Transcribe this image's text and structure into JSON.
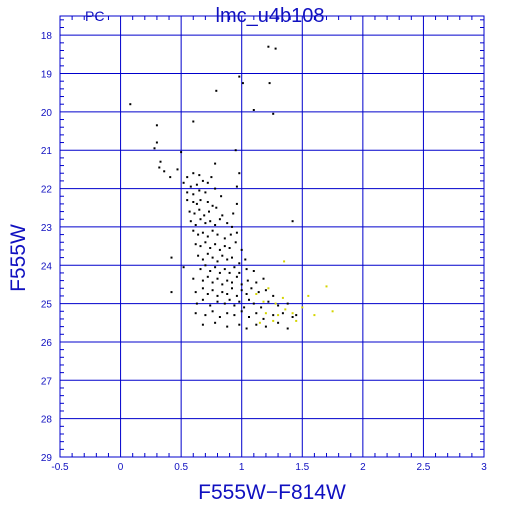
{
  "corner_label": "PC",
  "chart_data": {
    "type": "scatter",
    "title": "lmc_u4b108",
    "xlabel": "F555W−F814W",
    "ylabel": "F555W",
    "xlim": [
      -0.5,
      3
    ],
    "ylim": [
      29,
      17.5
    ],
    "y_inverted": true,
    "grid": true,
    "x_ticks": [
      "-0.5",
      "0",
      "0.5",
      "1",
      "1.5",
      "2",
      "2.5",
      "3"
    ],
    "y_ticks": [
      "18",
      "19",
      "20",
      "21",
      "22",
      "23",
      "24",
      "25",
      "26",
      "27",
      "28",
      "29"
    ],
    "colors": {
      "axes": "#0000cc",
      "grid": "#0000cc",
      "text": "#1010c0",
      "main": "#000000",
      "secondary": "#d4d400"
    },
    "series": [
      {
        "color": "#000000",
        "points": [
          [
            1.22,
            18.3
          ],
          [
            1.28,
            18.35
          ],
          [
            0.98,
            19.08
          ],
          [
            1.01,
            19.25
          ],
          [
            1.23,
            19.25
          ],
          [
            0.79,
            19.45
          ],
          [
            0.08,
            19.8
          ],
          [
            1.1,
            19.95
          ],
          [
            1.26,
            20.05
          ],
          [
            0.6,
            20.25
          ],
          [
            0.3,
            20.35
          ],
          [
            0.3,
            20.8
          ],
          [
            0.28,
            20.95
          ],
          [
            0.5,
            21.05
          ],
          [
            0.95,
            21.0
          ],
          [
            0.33,
            21.3
          ],
          [
            0.32,
            21.45
          ],
          [
            0.36,
            21.55
          ],
          [
            0.47,
            21.5
          ],
          [
            0.78,
            21.35
          ],
          [
            0.41,
            21.7
          ],
          [
            0.55,
            21.7
          ],
          [
            0.6,
            21.6
          ],
          [
            0.65,
            21.65
          ],
          [
            0.75,
            21.7
          ],
          [
            0.98,
            21.6
          ],
          [
            0.52,
            21.85
          ],
          [
            0.58,
            21.95
          ],
          [
            0.63,
            21.9
          ],
          [
            0.68,
            21.8
          ],
          [
            0.72,
            21.85
          ],
          [
            0.96,
            21.95
          ],
          [
            0.55,
            22.1
          ],
          [
            0.6,
            22.15
          ],
          [
            0.65,
            22.05
          ],
          [
            0.7,
            22.1
          ],
          [
            0.78,
            22.0
          ],
          [
            0.83,
            22.2
          ],
          [
            0.55,
            22.3
          ],
          [
            0.6,
            22.35
          ],
          [
            0.63,
            22.4
          ],
          [
            0.66,
            22.3
          ],
          [
            0.72,
            22.35
          ],
          [
            0.76,
            22.45
          ],
          [
            0.96,
            22.4
          ],
          [
            0.57,
            22.6
          ],
          [
            0.61,
            22.65
          ],
          [
            0.65,
            22.55
          ],
          [
            0.69,
            22.7
          ],
          [
            0.73,
            22.6
          ],
          [
            0.79,
            22.5
          ],
          [
            0.84,
            22.7
          ],
          [
            0.93,
            22.65
          ],
          [
            1.42,
            22.85
          ],
          [
            0.58,
            22.85
          ],
          [
            0.62,
            22.95
          ],
          [
            0.66,
            22.8
          ],
          [
            0.7,
            22.9
          ],
          [
            0.74,
            22.85
          ],
          [
            0.78,
            22.95
          ],
          [
            0.82,
            22.8
          ],
          [
            0.88,
            22.9
          ],
          [
            0.92,
            23.0
          ],
          [
            0.6,
            23.1
          ],
          [
            0.64,
            23.2
          ],
          [
            0.68,
            23.15
          ],
          [
            0.72,
            23.25
          ],
          [
            0.76,
            23.1
          ],
          [
            0.8,
            23.2
          ],
          [
            0.86,
            23.3
          ],
          [
            0.91,
            23.2
          ],
          [
            0.96,
            23.15
          ],
          [
            0.62,
            23.45
          ],
          [
            0.66,
            23.5
          ],
          [
            0.7,
            23.4
          ],
          [
            0.74,
            23.55
          ],
          [
            0.78,
            23.45
          ],
          [
            0.82,
            23.6
          ],
          [
            0.86,
            23.5
          ],
          [
            0.9,
            23.55
          ],
          [
            0.95,
            23.4
          ],
          [
            1.0,
            23.6
          ],
          [
            0.42,
            23.8
          ],
          [
            0.64,
            23.75
          ],
          [
            0.68,
            23.85
          ],
          [
            0.72,
            23.7
          ],
          [
            0.76,
            23.8
          ],
          [
            0.8,
            23.9
          ],
          [
            0.84,
            23.75
          ],
          [
            0.88,
            23.85
          ],
          [
            0.92,
            23.8
          ],
          [
            0.98,
            23.95
          ],
          [
            1.03,
            23.85
          ],
          [
            0.52,
            24.05
          ],
          [
            0.66,
            24.1
          ],
          [
            0.7,
            24.0
          ],
          [
            0.74,
            24.15
          ],
          [
            0.78,
            24.05
          ],
          [
            0.82,
            24.2
          ],
          [
            0.86,
            24.1
          ],
          [
            0.9,
            24.2
          ],
          [
            0.94,
            24.05
          ],
          [
            0.98,
            24.2
          ],
          [
            1.04,
            24.1
          ],
          [
            1.1,
            24.15
          ],
          [
            0.6,
            24.35
          ],
          [
            0.68,
            24.4
          ],
          [
            0.72,
            24.3
          ],
          [
            0.76,
            24.45
          ],
          [
            0.8,
            24.35
          ],
          [
            0.84,
            24.5
          ],
          [
            0.88,
            24.4
          ],
          [
            0.92,
            24.45
          ],
          [
            0.96,
            24.3
          ],
          [
            1.0,
            24.5
          ],
          [
            1.05,
            24.4
          ],
          [
            1.12,
            24.45
          ],
          [
            1.18,
            24.35
          ],
          [
            0.42,
            24.7
          ],
          [
            0.62,
            24.7
          ],
          [
            0.68,
            24.6
          ],
          [
            0.72,
            24.75
          ],
          [
            0.76,
            24.65
          ],
          [
            0.8,
            24.8
          ],
          [
            0.84,
            24.7
          ],
          [
            0.88,
            24.75
          ],
          [
            0.92,
            24.6
          ],
          [
            0.96,
            24.8
          ],
          [
            1.0,
            24.65
          ],
          [
            1.04,
            24.75
          ],
          [
            1.08,
            24.6
          ],
          [
            1.14,
            24.7
          ],
          [
            1.2,
            24.65
          ],
          [
            1.26,
            24.8
          ],
          [
            0.63,
            25.0
          ],
          [
            0.68,
            24.9
          ],
          [
            0.74,
            25.05
          ],
          [
            0.8,
            24.95
          ],
          [
            0.86,
            25.0
          ],
          [
            0.9,
            24.9
          ],
          [
            0.94,
            25.05
          ],
          [
            0.98,
            24.95
          ],
          [
            1.02,
            25.1
          ],
          [
            1.06,
            24.9
          ],
          [
            1.1,
            25.0
          ],
          [
            1.16,
            25.1
          ],
          [
            1.22,
            24.95
          ],
          [
            1.3,
            25.05
          ],
          [
            1.38,
            25.0
          ],
          [
            0.62,
            25.25
          ],
          [
            0.7,
            25.3
          ],
          [
            0.76,
            25.2
          ],
          [
            0.82,
            25.35
          ],
          [
            0.88,
            25.25
          ],
          [
            0.94,
            25.3
          ],
          [
            1.0,
            25.2
          ],
          [
            1.06,
            25.35
          ],
          [
            1.12,
            25.25
          ],
          [
            1.18,
            25.4
          ],
          [
            1.26,
            25.3
          ],
          [
            1.34,
            25.25
          ],
          [
            1.42,
            25.35
          ],
          [
            0.68,
            25.55
          ],
          [
            0.78,
            25.5
          ],
          [
            0.88,
            25.6
          ],
          [
            0.98,
            25.55
          ],
          [
            1.04,
            25.65
          ],
          [
            1.12,
            25.55
          ],
          [
            1.2,
            25.6
          ],
          [
            1.3,
            25.5
          ],
          [
            1.38,
            25.65
          ],
          [
            1.45,
            25.3
          ]
        ]
      },
      {
        "color": "#d4d400",
        "points": [
          [
            1.12,
            24.75
          ],
          [
            1.22,
            24.6
          ],
          [
            1.18,
            24.95
          ],
          [
            1.28,
            25.0
          ],
          [
            1.34,
            24.85
          ],
          [
            1.2,
            25.25
          ],
          [
            1.3,
            25.3
          ],
          [
            1.36,
            25.15
          ],
          [
            1.42,
            25.25
          ],
          [
            1.5,
            25.1
          ],
          [
            1.55,
            24.8
          ],
          [
            1.7,
            24.55
          ],
          [
            1.75,
            25.2
          ],
          [
            1.35,
            23.9
          ],
          [
            1.15,
            25.5
          ],
          [
            1.26,
            25.45
          ],
          [
            1.45,
            25.45
          ],
          [
            1.6,
            25.3
          ]
        ]
      }
    ]
  }
}
